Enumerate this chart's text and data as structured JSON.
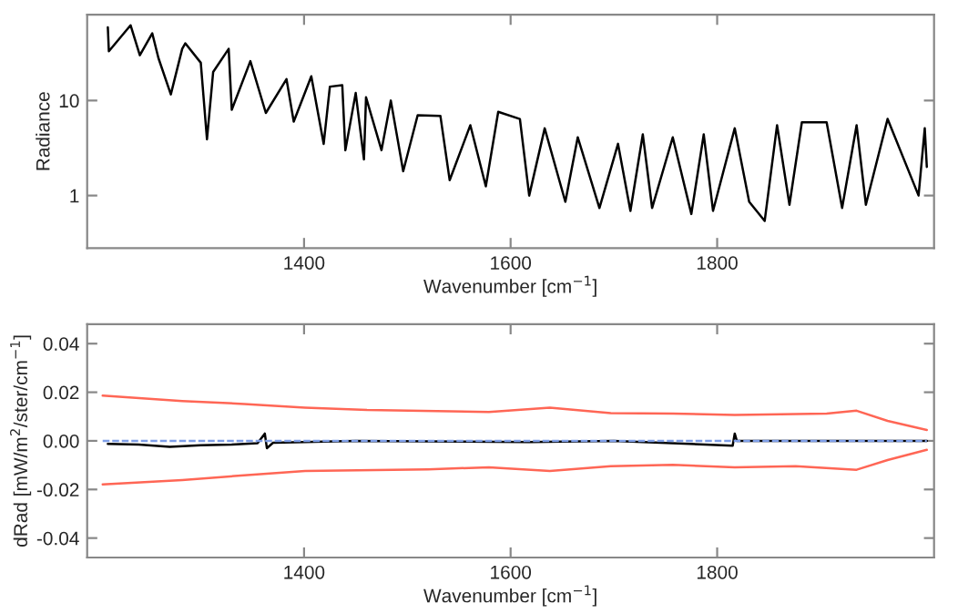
{
  "chart_data": [
    {
      "type": "line",
      "xlabel": "Wavenumber [cm$^{−1}$]",
      "ylabel": "Radiance",
      "log": "y",
      "xlim": [
        1190,
        2010
      ],
      "xticks": [
        1400,
        1600,
        1800
      ],
      "ylim": [
        0.28,
        80
      ],
      "yticks": [
        1,
        10
      ],
      "grid": false,
      "legend": false,
      "series": [
        {
          "color": "#000000",
          "line_style": "solid",
          "x": [
            1210,
            1211,
            1232,
            1241,
            1253,
            1259,
            1271,
            1282,
            1285,
            1300,
            1306,
            1312,
            1327,
            1330,
            1348,
            1363,
            1383,
            1390,
            1407,
            1419,
            1425,
            1437,
            1440,
            1450,
            1458,
            1460,
            1475,
            1484,
            1496,
            1510,
            1532,
            1541,
            1561,
            1576,
            1588,
            1609,
            1618,
            1633,
            1653,
            1665,
            1686,
            1704,
            1716,
            1728,
            1737,
            1757,
            1775,
            1787,
            1796,
            1817,
            1831,
            1846,
            1858,
            1870,
            1882,
            1906,
            1921,
            1935,
            1944,
            1965,
            1995,
            2001,
            2003
          ],
          "values": [
            59,
            33,
            62,
            30,
            51,
            28,
            11.6,
            35,
            40,
            25,
            3.9,
            20,
            35,
            8,
            26,
            7.4,
            16.8,
            6,
            18,
            3.5,
            14,
            14.5,
            3,
            12,
            2.4,
            10.8,
            3,
            10,
            1.8,
            7,
            6.9,
            1.45,
            5.5,
            1.25,
            7.6,
            6.4,
            1.0,
            5.1,
            0.86,
            4.1,
            0.74,
            3.5,
            0.69,
            4.4,
            0.74,
            4.1,
            0.64,
            4.4,
            0.69,
            5.1,
            0.86,
            0.54,
            5.5,
            0.8,
            5.9,
            5.9,
            0.74,
            5.5,
            0.8,
            6.4,
            1.0,
            5.1,
            2
          ]
        }
      ]
    },
    {
      "type": "line",
      "xlabel": "Wavenumber [cm$^{−1}$]",
      "ylabel": "dRad [mW/m$^{2}$/ster/cm$^{−1}$]",
      "xlim": [
        1190,
        2010
      ],
      "xticks": [
        1400,
        1600,
        1800
      ],
      "ylim": [
        -0.048,
        0.048
      ],
      "yticks": [
        {
          "value": -0.04,
          "label": "-0.04"
        },
        {
          "value": -0.02,
          "label": "-0.02"
        },
        {
          "value": 0,
          "label": "0.00"
        },
        {
          "value": 0.02,
          "label": "0.02"
        },
        {
          "value": 0.04,
          "label": "0.04"
        }
      ],
      "grid": false,
      "legend": false,
      "series": [
        {
          "color": "#ff6655",
          "line_style": "solid",
          "x": [
            1205,
            1282,
            1342,
            1401,
            1461,
            1579,
            1638,
            1697,
            1757,
            1817,
            1906,
            1935,
            1965,
            2003
          ],
          "values": [
            0.0186,
            0.0164,
            0.0152,
            0.0137,
            0.0127,
            0.0119,
            0.0137,
            0.0114,
            0.0112,
            0.0107,
            0.0112,
            0.0124,
            0.0082,
            0.0045
          ]
        },
        {
          "color": "#ff6655",
          "line_style": "solid",
          "x": [
            1205,
            1282,
            1342,
            1401,
            1520,
            1579,
            1638,
            1697,
            1757,
            1817,
            1876,
            1935,
            1965,
            2003
          ],
          "values": [
            -0.0179,
            -0.0161,
            -0.0142,
            -0.0124,
            -0.0117,
            -0.0109,
            -0.0124,
            -0.0104,
            -0.0099,
            -0.0109,
            -0.0104,
            -0.0119,
            -0.0079,
            -0.0037
          ]
        },
        {
          "color": "#000000",
          "line_style": "solid",
          "x": [
            1210,
            1240,
            1270,
            1300,
            1330,
            1355,
            1362,
            1364,
            1370,
            1400,
            1450,
            1618,
            1700,
            1815,
            1817,
            1819,
            2003
          ],
          "values": [
            -0.0012,
            -0.0015,
            -0.0025,
            -0.0018,
            -0.0015,
            -0.001,
            0.003,
            -0.003,
            -0.0008,
            -0.0005,
            0,
            -0.0005,
            0,
            -0.002,
            0.003,
            0,
            0
          ]
        },
        {
          "color": "#7f9fe8",
          "line_style": "dashed",
          "x": [
            1205,
            2003
          ],
          "values": [
            0,
            0
          ]
        }
      ]
    }
  ]
}
